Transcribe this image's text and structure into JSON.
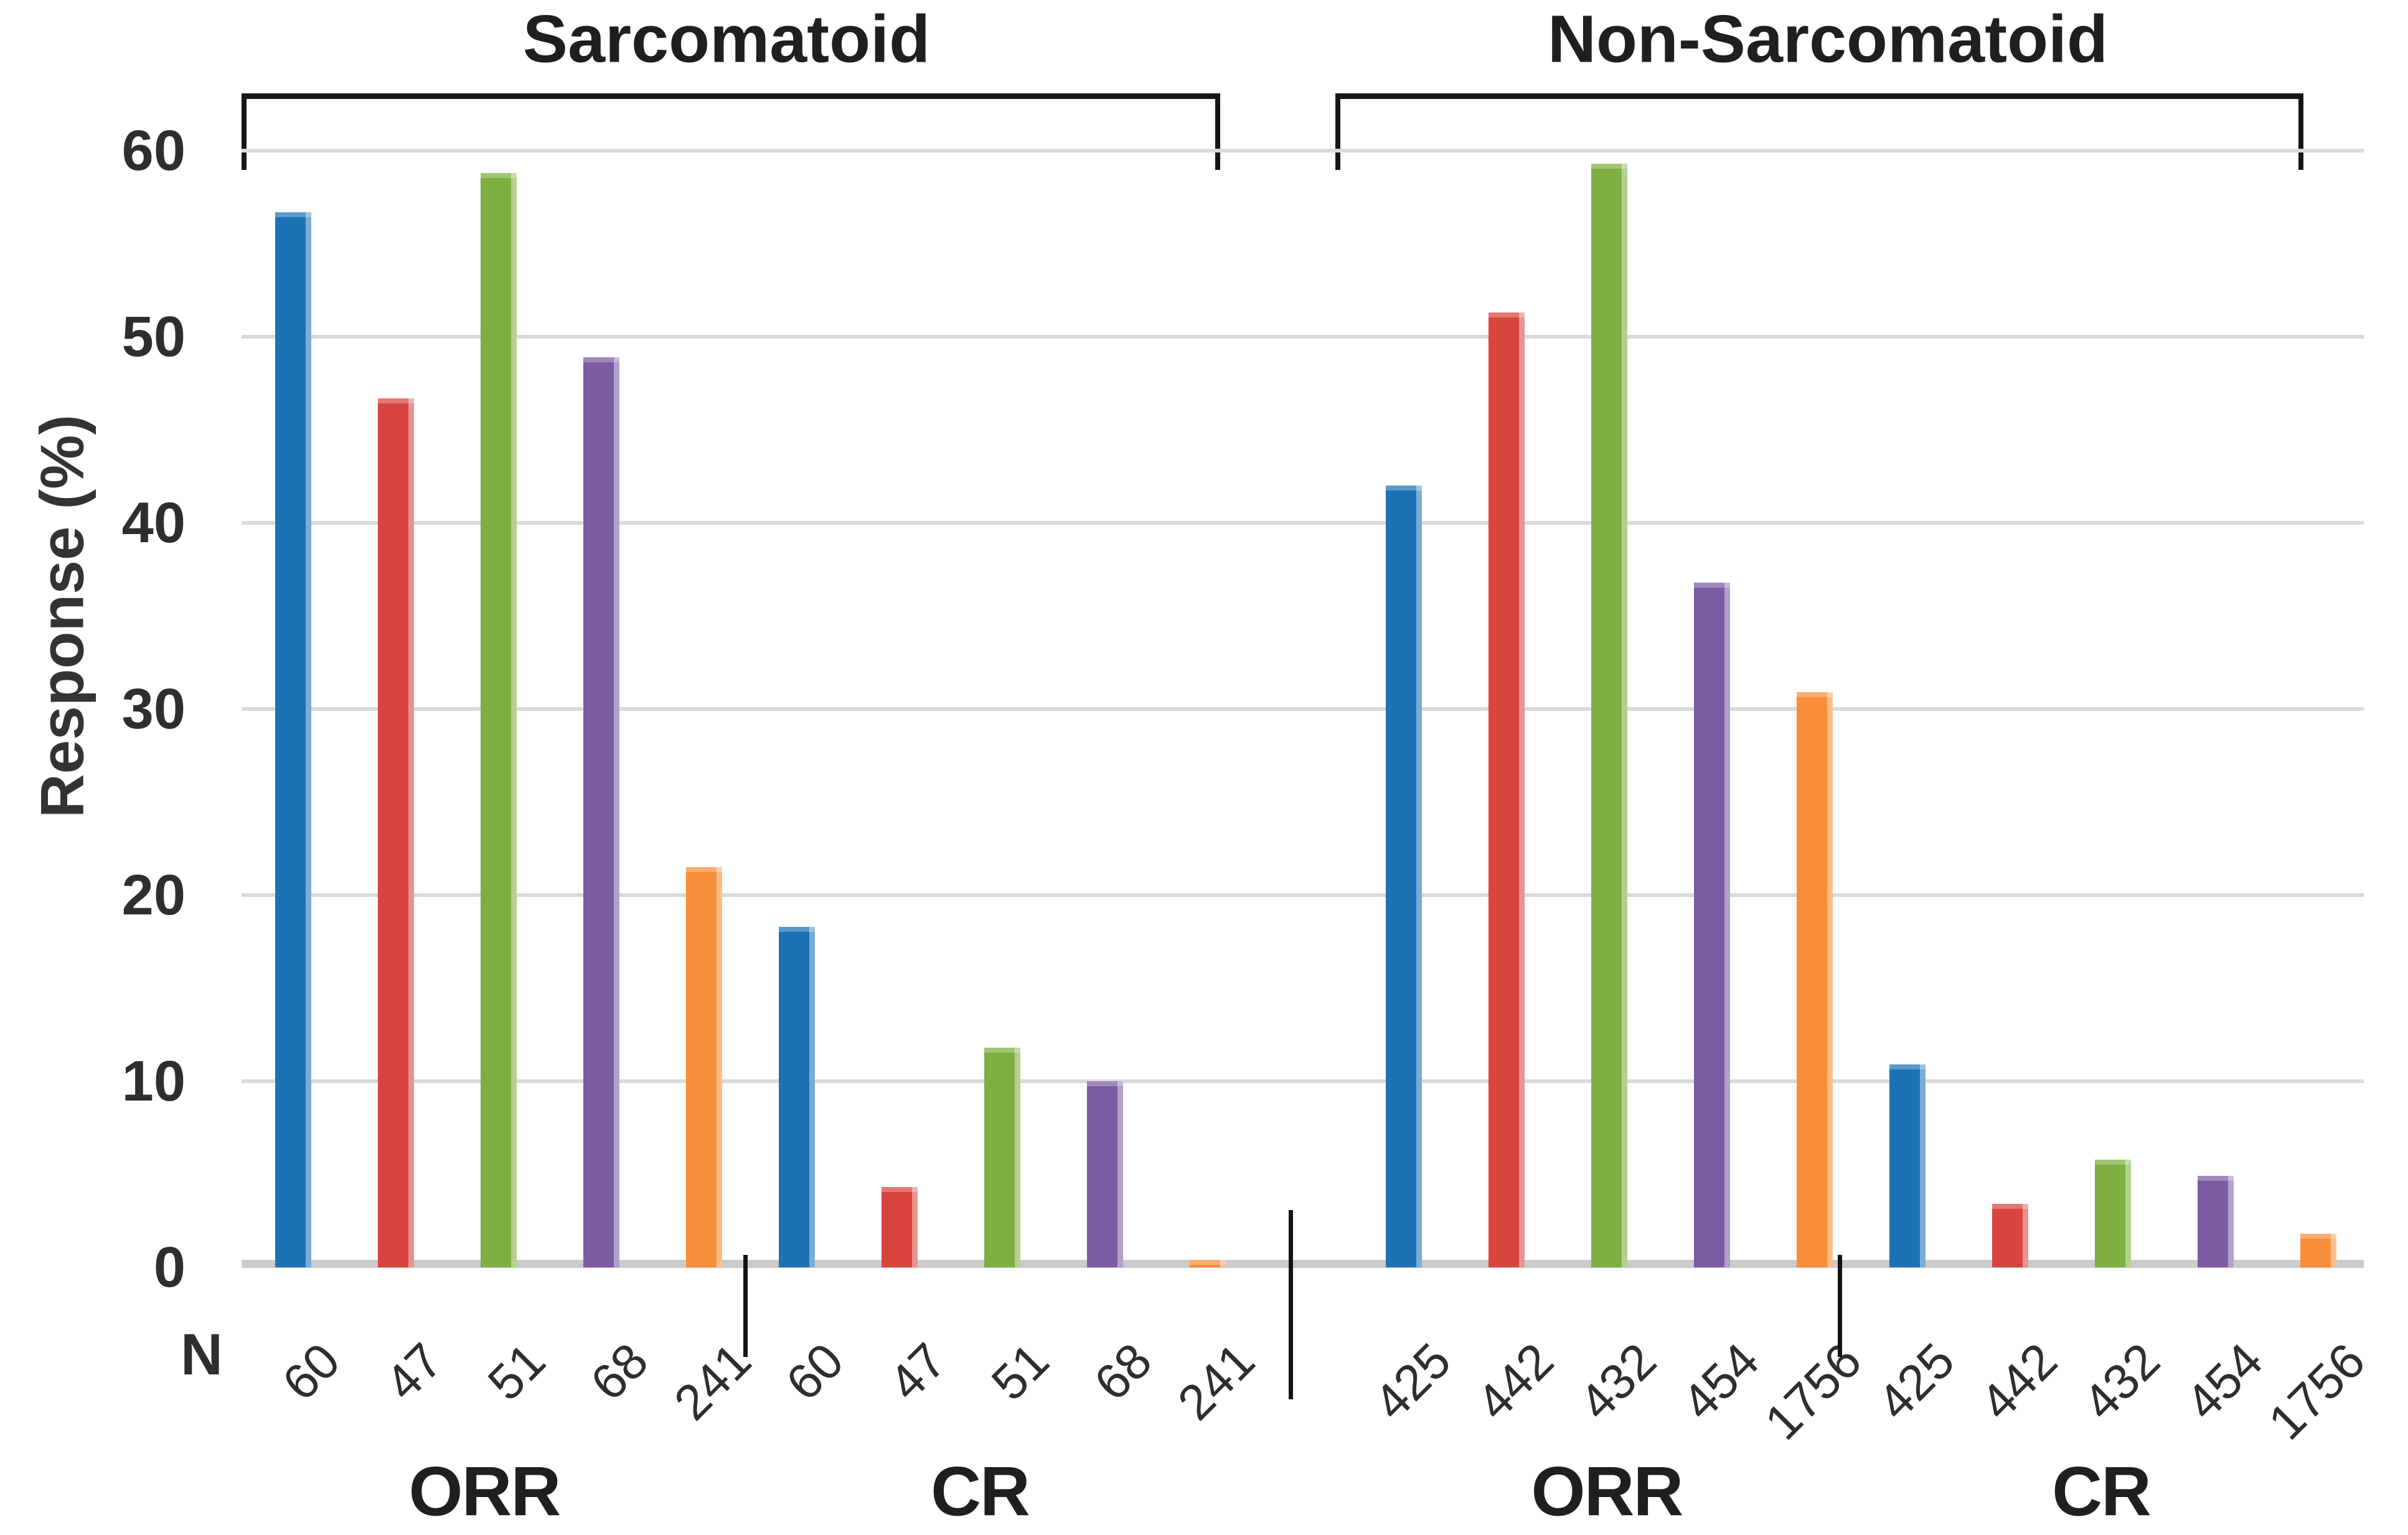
{
  "chart_data": {
    "type": "bar",
    "ylabel": "Response (%)",
    "xlabel": "",
    "ylim": [
      0,
      60
    ],
    "y_ticks": [
      0,
      10,
      20,
      30,
      40,
      50,
      60
    ],
    "grid": true,
    "legend": false,
    "n_axis_label": "N",
    "series_colors": [
      "#1b73b6",
      "#d8453e",
      "#7daf41",
      "#7b5ca4",
      "#f88d3b"
    ],
    "series_color_names": [
      "blue",
      "red",
      "green",
      "purple",
      "orange"
    ],
    "groups": [
      {
        "bracket_label": "Sarcomatoid",
        "subgroups": [
          {
            "label": "ORR",
            "n_values": [
              "60",
              "47",
              "51",
              "68",
              "241"
            ],
            "values": [
              56.7,
              46.7,
              58.8,
              48.9,
              21.5
            ]
          },
          {
            "label": "CR",
            "n_values": [
              "60",
              "47",
              "51",
              "68",
              "241"
            ],
            "values": [
              18.3,
              4.3,
              11.8,
              10.0,
              0.4
            ]
          }
        ]
      },
      {
        "bracket_label": "Non-Sarcomatoid",
        "subgroups": [
          {
            "label": "ORR",
            "n_values": [
              "425",
              "442",
              "432",
              "454",
              "1756"
            ],
            "values": [
              42.0,
              51.3,
              59.3,
              36.8,
              30.9
            ]
          },
          {
            "label": "CR",
            "n_values": [
              "425",
              "442",
              "432",
              "454",
              "1756"
            ],
            "values": [
              10.9,
              3.4,
              5.8,
              4.9,
              1.8
            ]
          }
        ]
      }
    ]
  }
}
